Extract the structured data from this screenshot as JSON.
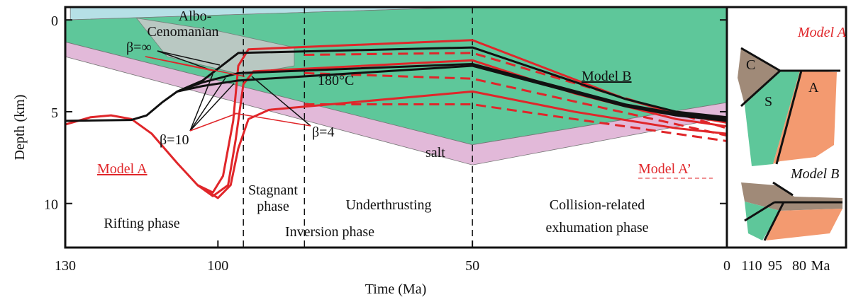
{
  "chart_data": {
    "type": "line",
    "xlabel": "Time (Ma)",
    "ylabel": "Depth (km)",
    "xlim": [
      130,
      0
    ],
    "ylim": [
      -0.7,
      12.4
    ],
    "xticks": [
      130,
      100,
      50,
      0
    ],
    "yticks": [
      0,
      5,
      10
    ],
    "phase_boundaries": [
      95,
      83,
      50
    ],
    "layers": [
      {
        "color": "#b6e0e6",
        "x": [
          129,
          50,
          129
        ],
        "depth": [
          -0.7,
          -0.7,
          0.0
        ]
      },
      {
        "color": "#5ec79a",
        "x": [
          130,
          50,
          0,
          0,
          50,
          130
        ],
        "depth": [
          0.0,
          -0.7,
          -0.7,
          4.5,
          6.8,
          1.2
        ]
      },
      {
        "name": "salt",
        "color": "#e2b9d9",
        "x": [
          130,
          50,
          0,
          0,
          50,
          130
        ],
        "depth": [
          1.2,
          6.8,
          4.5,
          5.3,
          7.9,
          2.0
        ]
      },
      {
        "color": "#c9c9c9",
        "x": [
          116,
          100,
          85,
          85,
          95,
          110
        ],
        "depth": [
          -0.1,
          0.6,
          1.5,
          2.5,
          3.0,
          2.0
        ]
      }
    ],
    "models": [
      {
        "name": "Model A",
        "color": "#e0262a",
        "dashed": false,
        "curves": [
          {
            "x": [
              130,
              125,
              121,
              117,
              113,
              108,
              104,
              101,
              99,
              97,
              96,
              94,
              50,
              35,
              20,
              10,
              0
            ],
            "values": [
              5.7,
              5.3,
              5.2,
              5.4,
              6.2,
              7.8,
              9.0,
              9.4,
              8.5,
              5.5,
              2.5,
              1.6,
              1.1,
              2.7,
              4.3,
              5.1,
              5.6
            ]
          },
          {
            "x": [
              104,
              101,
              98,
              96.5,
              95,
              93,
              50,
              30,
              10,
              0
            ],
            "values": [
              9.0,
              9.6,
              9.0,
              6.5,
              3.5,
              2.8,
              2.2,
              4.0,
              5.4,
              5.8
            ]
          },
          {
            "x": [
              104,
              100,
              97.5,
              96,
              94,
              90,
              50,
              30,
              10,
              0
            ],
            "values": [
              9.0,
              9.7,
              9.0,
              7.0,
              5.4,
              4.9,
              3.9,
              5.0,
              5.9,
              6.2
            ]
          }
        ]
      },
      {
        "name": "Model A’",
        "color": "#e0262a",
        "dashed": true,
        "curves": [
          {
            "x": [
              83,
              50,
              0
            ],
            "values": [
              1.9,
              1.8,
              5.9
            ]
          },
          {
            "x": [
              83,
              50,
              0
            ],
            "values": [
              2.9,
              3.2,
              6.3
            ]
          },
          {
            "x": [
              83,
              50,
              0
            ],
            "values": [
              4.6,
              4.6,
              6.6
            ]
          }
        ]
      },
      {
        "name": "Model B",
        "color": "#111111",
        "dashed": false,
        "curves": [
          {
            "x": [
              130,
              117,
              114,
              111,
              108,
              103,
              96,
              50,
              35,
              20,
              10,
              0
            ],
            "values": [
              5.5,
              5.45,
              5.2,
              4.5,
              3.9,
              3.3,
              1.8,
              1.5,
              2.9,
              4.3,
              5.0,
              5.3
            ]
          },
          {
            "x": [
              108,
              103,
              96,
              50,
              35,
              20,
              10,
              0
            ],
            "values": [
              3.9,
              3.4,
              2.9,
              2.4,
              3.5,
              4.6,
              5.1,
              5.4
            ]
          },
          {
            "x": [
              108,
              103,
              96,
              50,
              35,
              20,
              10,
              0
            ],
            "values": [
              3.9,
              3.6,
              3.3,
              2.5,
              3.6,
              4.7,
              5.2,
              5.5
            ]
          }
        ]
      }
    ],
    "annotations": {
      "albo": [
        "Albo-",
        "Cenomanian"
      ],
      "beta_inf": "β=∞",
      "beta_10": "β=10",
      "beta_4": "β=4",
      "temperature": "180°C"
    },
    "phases": {
      "rifting": "Rifting phase",
      "stagnant": [
        "Stagnant",
        "phase"
      ],
      "underthrusting": "Underthrusting",
      "inversion": "Inversion phase",
      "collision": [
        "Collision-related",
        "exhumation phase"
      ]
    }
  },
  "inset": {
    "models": [
      {
        "title": "Model A",
        "labels": [
          "C",
          "S",
          "A"
        ]
      },
      {
        "title": "Model B"
      }
    ],
    "xticks": [
      110,
      95,
      80
    ],
    "unit": "Ma"
  }
}
